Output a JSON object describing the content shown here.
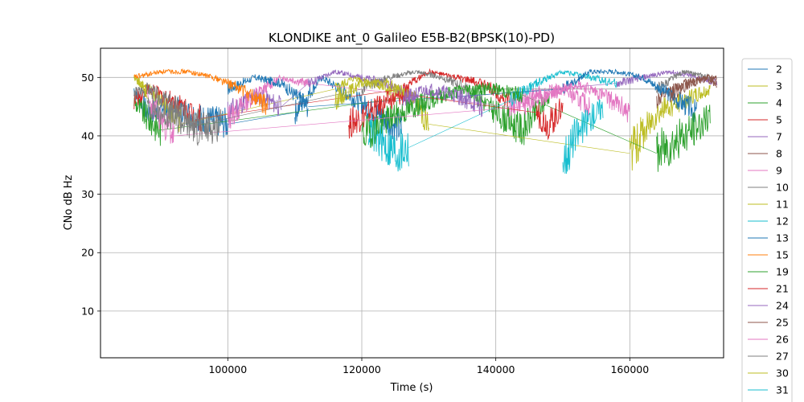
{
  "chart_data": {
    "type": "line",
    "title": "KLONDIKE ant_0 Galileo E5B-B2(BPSK(10)-PD)",
    "xlabel": "Time (s)",
    "ylabel": "CNo dB Hz",
    "xlim": [
      81000,
      174000
    ],
    "ylim": [
      2,
      55
    ],
    "xticks": [
      100000,
      120000,
      140000,
      160000
    ],
    "xtick_labels": [
      "100000",
      "120000",
      "140000",
      "160000"
    ],
    "yticks": [
      10,
      20,
      30,
      40,
      50
    ],
    "ytick_labels": [
      "10",
      "20",
      "30",
      "40",
      "50"
    ],
    "grid": true,
    "legend_position": "right (outside plot, clipped at bottom)",
    "series": [
      {
        "name": "2",
        "color": "#1f77b4",
        "segments": [
          {
            "x": [
              86000,
              88000,
              92000,
              96000,
              100000
            ],
            "y": [
              48,
              44,
              45,
              43,
              42
            ]
          },
          {
            "x": [
              110000,
              114000,
              118000,
              122000,
              126000
            ],
            "y": [
              44,
              50,
              47,
              44,
              41
            ]
          }
        ]
      },
      {
        "name": "3",
        "color": "#bcbd22",
        "segments": [
          {
            "x": [
              86000,
              88000,
              91000,
              93000
            ],
            "y": [
              50,
              48,
              45,
              42
            ]
          },
          {
            "x": [
              116000,
              119000,
              122000,
              125000
            ],
            "y": [
              48,
              50,
              49,
              47
            ]
          }
        ]
      },
      {
        "name": "4",
        "color": "#2ca02c",
        "segments": [
          {
            "x": [
              86000,
              88000,
              90000
            ],
            "y": [
              46,
              43,
              41
            ]
          },
          {
            "x": [
              136000,
              140000,
              144000,
              148000
            ],
            "y": [
              48,
              44,
              41,
              47
            ]
          }
        ]
      },
      {
        "name": "5",
        "color": "#d62728",
        "segments": [
          {
            "x": [
              86000,
              88000,
              92000,
              96000
            ],
            "y": [
              46,
              48,
              46,
              43
            ]
          },
          {
            "x": [
              126000,
              130000,
              134000,
              138000,
              142000
            ],
            "y": [
              48,
              51,
              50,
              49,
              46
            ]
          }
        ]
      },
      {
        "name": "7",
        "color": "#9467bd",
        "segments": [
          {
            "x": [
              100000,
              104000,
              108000
            ],
            "y": [
              44,
              47,
              45
            ]
          },
          {
            "x": [
              112000,
              116000,
              120000,
              124000,
              128000
            ],
            "y": [
              49,
              51,
              50,
              49,
              46
            ]
          },
          {
            "x": [
              158000,
              162000,
              166000,
              170000,
              173000
            ],
            "y": [
              49,
              50,
              51,
              50,
              49
            ]
          }
        ]
      },
      {
        "name": "8",
        "color": "#8c564b",
        "segments": [
          {
            "x": [
              164000,
              168000,
              171000,
              173000
            ],
            "y": [
              46,
              49,
              50,
              49
            ]
          }
        ]
      },
      {
        "name": "9",
        "color": "#e377c2",
        "segments": [
          {
            "x": [
              100000,
              104000,
              108000,
              112000
            ],
            "y": [
              43,
              47,
              50,
              49
            ]
          },
          {
            "x": [
              142000,
              146000,
              150000,
              154000
            ],
            "y": [
              45,
              47,
              48,
              45
            ]
          }
        ]
      },
      {
        "name": "10",
        "color": "#7f7f7f",
        "segments": [
          {
            "x": [
              86000,
              88000,
              92000,
              96000
            ],
            "y": [
              47,
              48,
              45,
              42
            ]
          },
          {
            "x": [
              120000,
              124000,
              128000,
              132000,
              136000
            ],
            "y": [
              48,
              50,
              51,
              50,
              48
            ]
          },
          {
            "x": [
              164000,
              168000,
              172000
            ],
            "y": [
              48,
              51,
              50
            ]
          }
        ]
      },
      {
        "name": "11",
        "color": "#bcbd22",
        "segments": [
          {
            "x": [
              116000,
              120000,
              124000,
              128000,
              130000
            ],
            "y": [
              46,
              49,
              49,
              46,
              42
            ]
          },
          {
            "x": [
              160000,
              164000,
              168000,
              172000
            ],
            "y": [
              37,
              44,
              46,
              48
            ]
          }
        ]
      },
      {
        "name": "12",
        "color": "#17becf",
        "segments": [
          {
            "x": [
              121000,
              123000,
              125000,
              127000
            ],
            "y": [
              41,
              39,
              37,
              38
            ]
          },
          {
            "x": [
              142000,
              146000,
              150000,
              154000,
              158000
            ],
            "y": [
              46,
              49,
              51,
              50,
              49
            ]
          }
        ]
      },
      {
        "name": "13",
        "color": "#1f77b4",
        "segments": [
          {
            "x": [
              100000,
              104000,
              108000,
              112000
            ],
            "y": [
              48,
              50,
              49,
              45
            ]
          },
          {
            "x": [
              150000,
              154000,
              158000,
              162000,
              166000,
              170000
            ],
            "y": [
              48,
              51,
              51,
              50,
              47,
              44
            ]
          }
        ]
      },
      {
        "name": "15",
        "color": "#ff7f0e",
        "segments": [
          {
            "x": [
              86000,
              90000,
              94000,
              98000,
              102000,
              106000
            ],
            "y": [
              50,
              51,
              51,
              50,
              48,
              45
            ]
          }
        ]
      },
      {
        "name": "19",
        "color": "#2ca02c",
        "segments": [
          {
            "x": [
              120000,
              124000,
              128000,
              132000,
              136000,
              140000,
              144000
            ],
            "y": [
              40,
              43,
              45,
              47,
              48,
              48,
              47
            ]
          },
          {
            "x": [
              164000,
              168000,
              172000
            ],
            "y": [
              37,
              40,
              43
            ]
          }
        ]
      },
      {
        "name": "21",
        "color": "#d62728",
        "segments": [
          {
            "x": [
              118000,
              121000,
              124000,
              127000
            ],
            "y": [
              42,
              44,
              46,
              47
            ]
          },
          {
            "x": [
              146000,
              148000,
              150000
            ],
            "y": [
              44,
              42,
              45
            ]
          }
        ]
      },
      {
        "name": "24",
        "color": "#9467bd",
        "segments": [
          {
            "x": [
              126000,
              130000,
              134000,
              138000
            ],
            "y": [
              46,
              48,
              47,
              45
            ]
          }
        ]
      },
      {
        "name": "25",
        "color": "#8c564b",
        "segments": [
          {
            "x": [
              166000,
              169000,
              172000,
              173000
            ],
            "y": [
              47,
              49,
              50,
              50
            ]
          }
        ]
      },
      {
        "name": "26",
        "color": "#e377c2",
        "segments": [
          {
            "x": [
              88000,
              90000,
              92000
            ],
            "y": [
              46,
              43,
              40
            ]
          },
          {
            "x": [
              144000,
              148000,
              152000,
              156000,
              160000
            ],
            "y": [
              45,
              47,
              49,
              47,
              44
            ]
          }
        ]
      },
      {
        "name": "27",
        "color": "#7f7f7f",
        "segments": [
          {
            "x": [
              88000,
              92000,
              96000,
              99000
            ],
            "y": [
              45,
              43,
              41,
              42
            ]
          }
        ]
      },
      {
        "name": "30",
        "color": "#bcbd22",
        "segments": [
          {
            "x": [
              86000,
              87000,
              88000
            ],
            "y": [
              50,
              49,
              47
            ]
          }
        ]
      },
      {
        "name": "31",
        "color": "#17becf",
        "segments": [
          {
            "x": [
              150000,
              152000,
              154000,
              156000
            ],
            "y": [
              36,
              40,
              43,
              45
            ]
          }
        ]
      }
    ]
  }
}
